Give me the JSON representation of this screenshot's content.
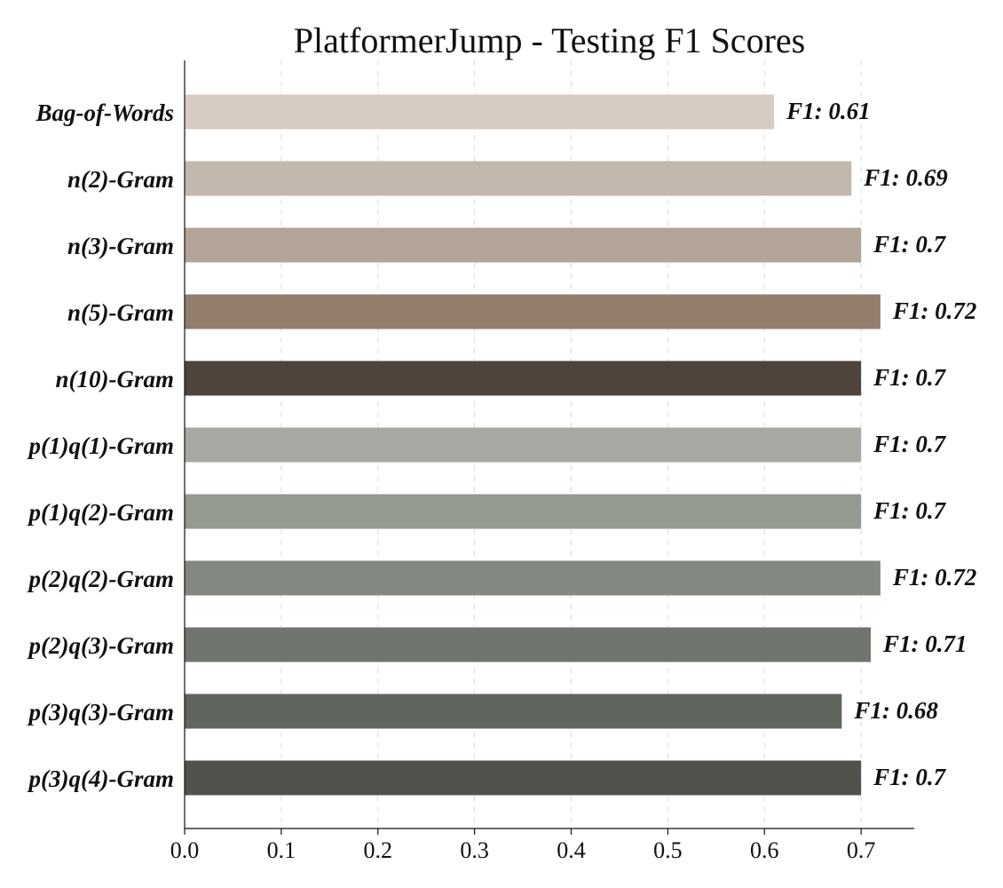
{
  "chart_data": {
    "type": "bar",
    "orientation": "horizontal",
    "title": "PlatformerJump - Testing F1 Scores",
    "xlabel": "",
    "ylabel": "",
    "categories": [
      "Bag-of-Words",
      "n(2)-Gram",
      "n(3)-Gram",
      "n(5)-Gram",
      "n(10)-Gram",
      "p(1)q(1)-Gram",
      "p(1)q(2)-Gram",
      "p(2)q(2)-Gram",
      "p(2)q(3)-Gram",
      "p(3)q(3)-Gram",
      "p(3)q(4)-Gram"
    ],
    "values": [
      0.61,
      0.69,
      0.7,
      0.72,
      0.7,
      0.7,
      0.7,
      0.72,
      0.71,
      0.68,
      0.7
    ],
    "value_labels": [
      "F1: 0.61",
      "F1: 0.69",
      "F1: 0.7",
      "F1: 0.72",
      "F1: 0.7",
      "F1: 0.7",
      "F1: 0.7",
      "F1: 0.72",
      "F1: 0.71",
      "F1: 0.68",
      "F1: 0.7"
    ],
    "colors": [
      "#d8cbc3",
      "#c2b8ae",
      "#b2a497",
      "#937e6b",
      "#4f443b",
      "#a6a9a2",
      "#959a91",
      "#838980",
      "#70766d",
      "#60665e",
      "#4f534c"
    ],
    "xlim": [
      0,
      0.755
    ],
    "xticks": [
      0.0,
      0.1,
      0.2,
      0.3,
      0.4,
      0.5,
      0.6,
      0.7
    ],
    "xtick_labels": [
      "0.0",
      "0.1",
      "0.2",
      "0.3",
      "0.4",
      "0.5",
      "0.6",
      "0.7"
    ],
    "grid": "vertical dashed",
    "legend": "none"
  }
}
